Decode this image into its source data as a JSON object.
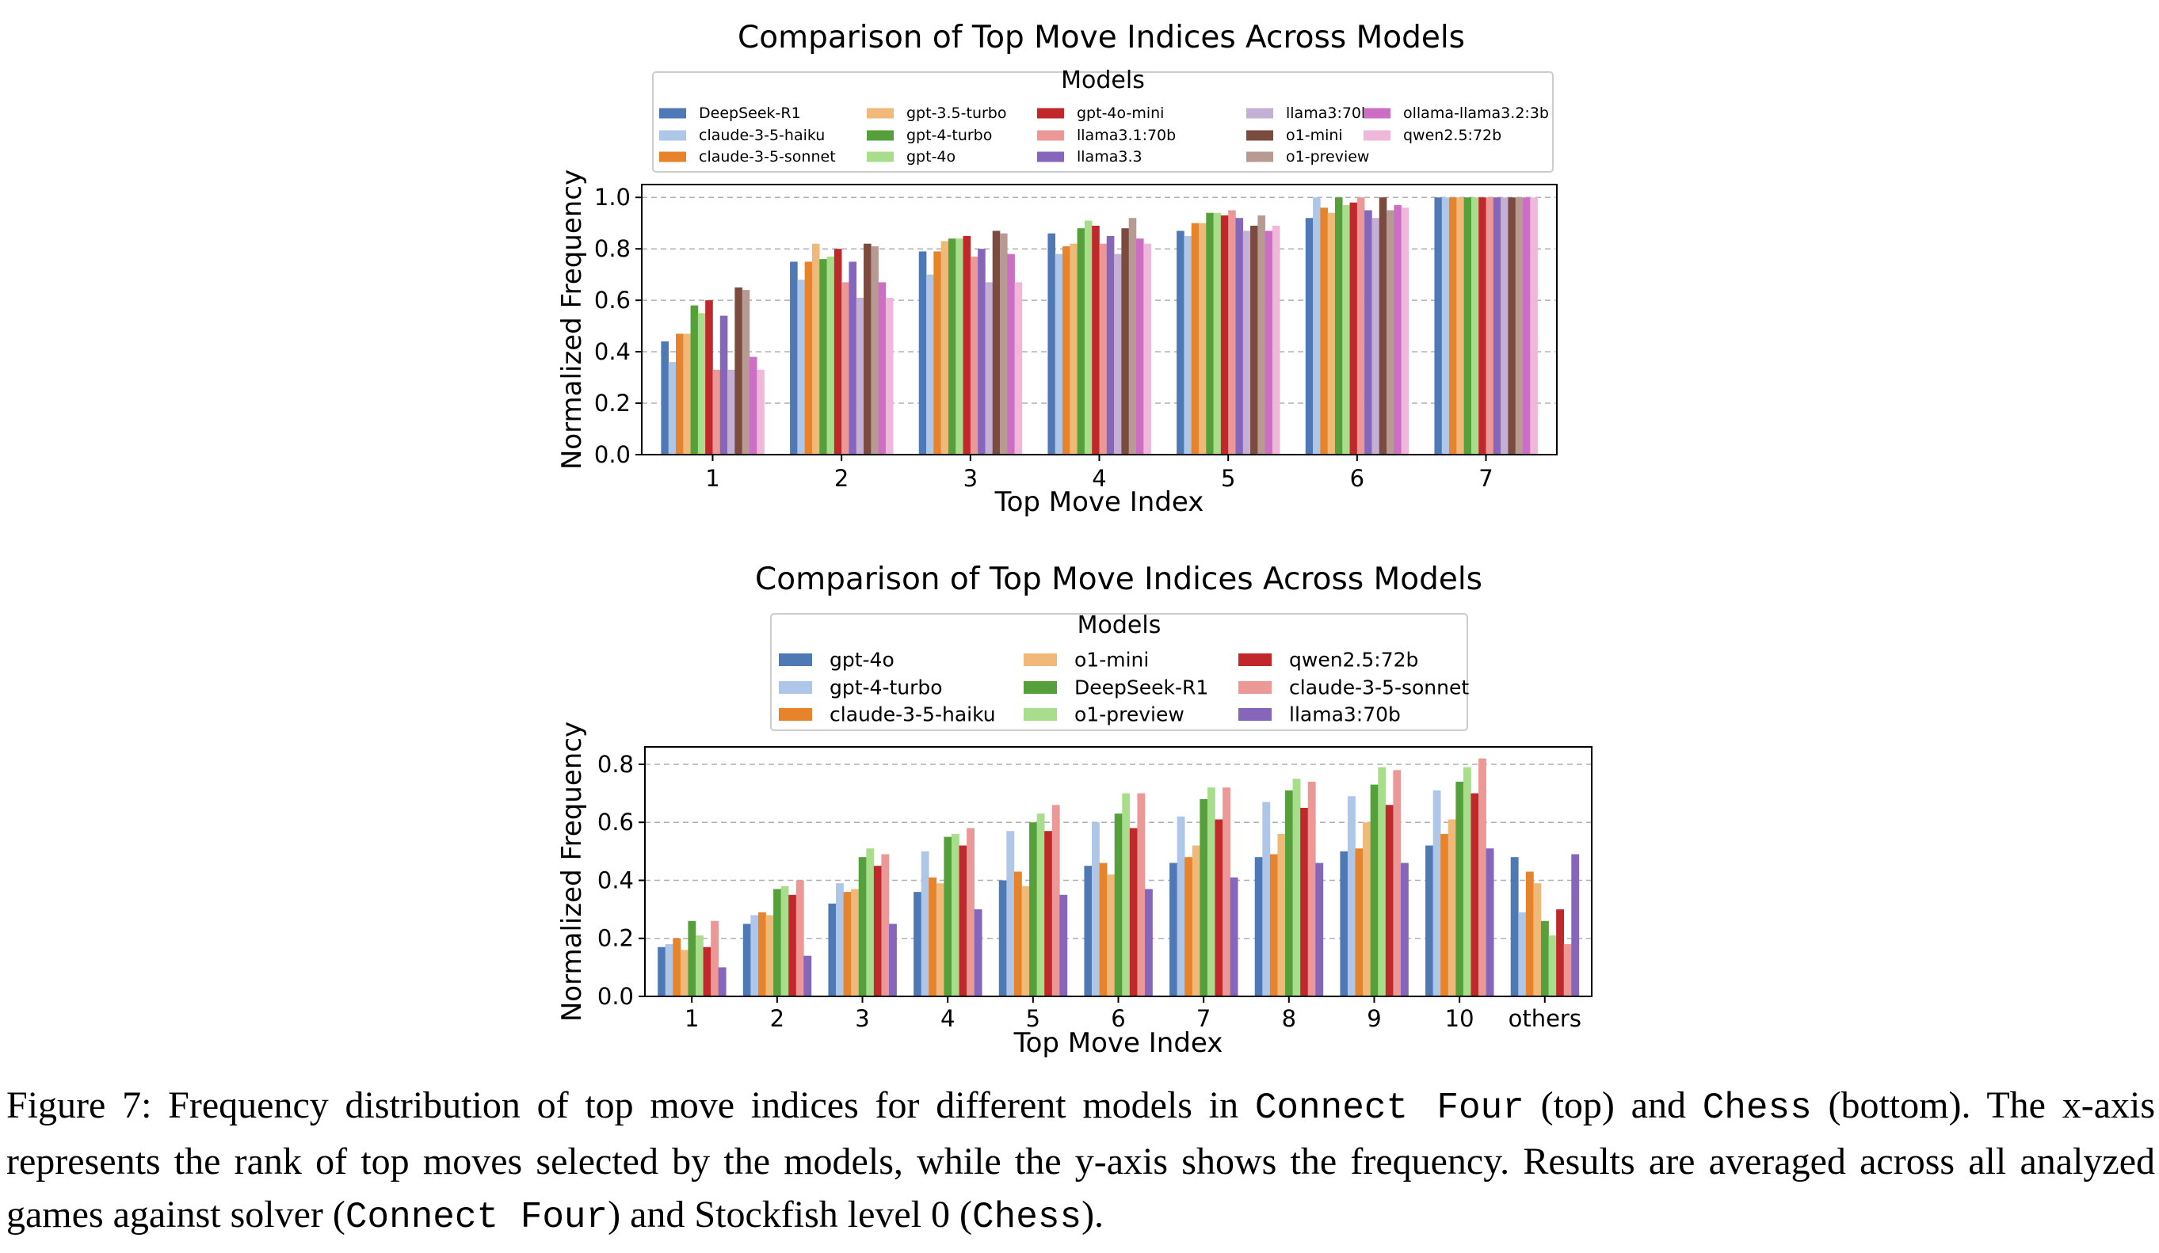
{
  "chart_data": [
    {
      "type": "bar",
      "title": "Comparison of Top Move Indices Across Models",
      "xlabel": "Top Move Index",
      "ylabel": "Normalized Frequency",
      "ylim": [
        0,
        1.05
      ],
      "yticks": [
        "0.0",
        "0.2",
        "0.4",
        "0.6",
        "0.8",
        "1.0"
      ],
      "grid": "y-dashed",
      "legend_title": "Models",
      "legend_placement": "top-center",
      "categories": [
        "1",
        "2",
        "3",
        "4",
        "5",
        "6",
        "7"
      ],
      "series": [
        {
          "name": "DeepSeek-R1",
          "color": "#4e79b5",
          "values": [
            0.44,
            0.75,
            0.79,
            0.86,
            0.87,
            0.92,
            1.0
          ]
        },
        {
          "name": "claude-3-5-haiku",
          "color": "#aec7e8",
          "values": [
            0.36,
            0.68,
            0.7,
            0.78,
            0.85,
            1.0,
            1.0
          ]
        },
        {
          "name": "claude-3-5-sonnet",
          "color": "#e6832b",
          "values": [
            0.47,
            0.75,
            0.79,
            0.81,
            0.9,
            0.96,
            1.0
          ]
        },
        {
          "name": "gpt-3.5-turbo",
          "color": "#f0b97a",
          "values": [
            0.47,
            0.82,
            0.83,
            0.82,
            0.9,
            0.94,
            1.0
          ]
        },
        {
          "name": "gpt-4-turbo",
          "color": "#55a03a",
          "values": [
            0.58,
            0.76,
            0.84,
            0.88,
            0.94,
            1.0,
            1.0
          ]
        },
        {
          "name": "gpt-4o",
          "color": "#a8de8b",
          "values": [
            0.55,
            0.77,
            0.84,
            0.91,
            0.94,
            0.97,
            1.0
          ]
        },
        {
          "name": "gpt-4o-mini",
          "color": "#c0282b",
          "values": [
            0.6,
            0.8,
            0.85,
            0.89,
            0.93,
            0.98,
            1.0
          ]
        },
        {
          "name": "llama3.1:70b",
          "color": "#ec9896",
          "values": [
            0.33,
            0.67,
            0.77,
            0.82,
            0.95,
            1.0,
            1.0
          ]
        },
        {
          "name": "llama3.3",
          "color": "#8566ba",
          "values": [
            0.54,
            0.75,
            0.8,
            0.85,
            0.92,
            0.95,
            1.0
          ]
        },
        {
          "name": "llama3:70b",
          "color": "#c5b0d5",
          "values": [
            0.33,
            0.61,
            0.67,
            0.78,
            0.87,
            0.92,
            1.0
          ]
        },
        {
          "name": "o1-mini",
          "color": "#7b4b3f",
          "values": [
            0.65,
            0.82,
            0.87,
            0.88,
            0.89,
            1.0,
            1.0
          ]
        },
        {
          "name": "o1-preview",
          "color": "#b79b93",
          "values": [
            0.64,
            0.81,
            0.86,
            0.92,
            0.93,
            0.95,
            1.0
          ]
        },
        {
          "name": "ollama-llama3.2:3b",
          "color": "#cc6ec4",
          "values": [
            0.38,
            0.67,
            0.78,
            0.84,
            0.87,
            0.97,
            1.0
          ]
        },
        {
          "name": "qwen2.5:72b",
          "color": "#efb7da",
          "values": [
            0.33,
            0.61,
            0.67,
            0.82,
            0.89,
            0.96,
            1.0
          ]
        }
      ]
    },
    {
      "type": "bar",
      "title": "Comparison of Top Move Indices Across Models",
      "xlabel": "Top Move Index",
      "ylabel": "Normalized Frequency",
      "ylim": [
        0,
        0.86
      ],
      "yticks": [
        "0.0",
        "0.2",
        "0.4",
        "0.6",
        "0.8"
      ],
      "grid": "y-dashed",
      "legend_title": "Models",
      "legend_placement": "top-center",
      "categories": [
        "1",
        "2",
        "3",
        "4",
        "5",
        "6",
        "7",
        "8",
        "9",
        "10",
        "others"
      ],
      "series": [
        {
          "name": "gpt-4o",
          "color": "#4e79b5",
          "values": [
            0.17,
            0.25,
            0.32,
            0.36,
            0.4,
            0.45,
            0.46,
            0.48,
            0.5,
            0.52,
            0.48
          ]
        },
        {
          "name": "gpt-4-turbo",
          "color": "#aec7e8",
          "values": [
            0.18,
            0.28,
            0.39,
            0.5,
            0.57,
            0.6,
            0.62,
            0.67,
            0.69,
            0.71,
            0.29
          ]
        },
        {
          "name": "claude-3-5-haiku",
          "color": "#e6832b",
          "values": [
            0.2,
            0.29,
            0.36,
            0.41,
            0.43,
            0.46,
            0.48,
            0.49,
            0.51,
            0.56,
            0.43
          ]
        },
        {
          "name": "o1-mini",
          "color": "#f0b97a",
          "values": [
            0.16,
            0.28,
            0.37,
            0.39,
            0.38,
            0.42,
            0.52,
            0.56,
            0.6,
            0.61,
            0.39
          ]
        },
        {
          "name": "DeepSeek-R1",
          "color": "#55a03a",
          "values": [
            0.26,
            0.37,
            0.48,
            0.55,
            0.6,
            0.63,
            0.68,
            0.71,
            0.73,
            0.74,
            0.26
          ]
        },
        {
          "name": "o1-preview",
          "color": "#a8de8b",
          "values": [
            0.21,
            0.38,
            0.51,
            0.56,
            0.63,
            0.7,
            0.72,
            0.75,
            0.79,
            0.79,
            0.21
          ]
        },
        {
          "name": "qwen2.5:72b",
          "color": "#c0282b",
          "values": [
            0.17,
            0.35,
            0.45,
            0.52,
            0.57,
            0.58,
            0.61,
            0.65,
            0.66,
            0.7,
            0.3
          ]
        },
        {
          "name": "claude-3-5-sonnet",
          "color": "#ec9896",
          "values": [
            0.26,
            0.4,
            0.49,
            0.58,
            0.66,
            0.7,
            0.72,
            0.74,
            0.78,
            0.82,
            0.18
          ]
        },
        {
          "name": "llama3:70b",
          "color": "#8566ba",
          "values": [
            0.1,
            0.14,
            0.25,
            0.3,
            0.35,
            0.37,
            0.41,
            0.46,
            0.46,
            0.51,
            0.49
          ]
        }
      ]
    }
  ],
  "caption": {
    "part1": "Figure 7: Frequency distribution of top move indices for different models in ",
    "mono1": "Connect Four",
    "part2": " (top) and ",
    "mono2": "Chess",
    "part3": " (bottom). The x-axis represents the rank of top moves selected by the models, while the y-axis shows the frequency. Results are averaged across all analyzed games against solver (",
    "mono3": "Connect Four",
    "part4": ") and Stockfish level 0 (",
    "mono4": "Chess",
    "part5": ")."
  }
}
